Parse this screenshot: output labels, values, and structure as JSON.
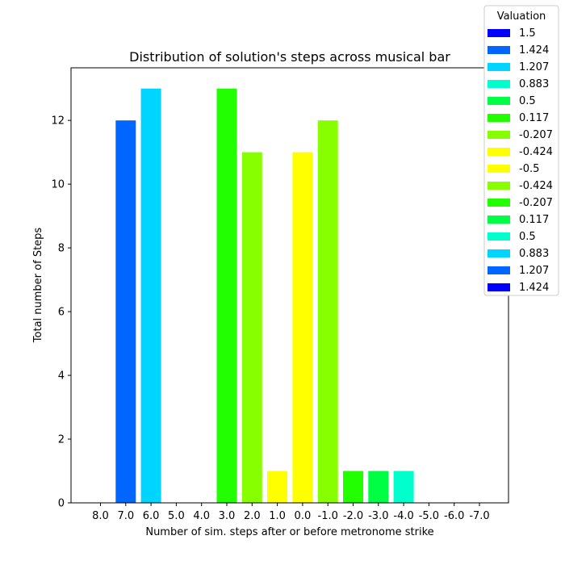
{
  "chart_data": {
    "type": "bar",
    "title": "Distribution of solution's steps across musical bar",
    "xlabel": "Number of sim. steps after or before metronome strike",
    "ylabel": "Total number of Steps",
    "ylim": [
      0,
      13.65
    ],
    "yticks": [
      0,
      2,
      4,
      6,
      8,
      10,
      12
    ],
    "grid": false,
    "categories": [
      "8.0",
      "7.0",
      "6.0",
      "5.0",
      "4.0",
      "3.0",
      "2.0",
      "1.0",
      "0.0",
      "-1.0",
      "-2.0",
      "-3.0",
      "-4.0",
      "-5.0",
      "-6.0",
      "-7.0"
    ],
    "values": [
      0,
      12,
      13,
      0,
      0,
      13,
      11,
      1,
      11,
      12,
      1,
      1,
      1,
      0,
      0,
      0
    ],
    "bar_colors": [
      "#0000ff",
      "#0066ff",
      "#00d5ff",
      "#00ffcc",
      "#00ff44",
      "#22ff00",
      "#88ff00",
      "#ffff00",
      "#ffff00",
      "#88ff00",
      "#22ff00",
      "#00ff44",
      "#00ffcc",
      "#00d5ff",
      "#0066ff",
      "#0000ff"
    ],
    "legend": {
      "title": "Valuation",
      "placement": "top-right",
      "entries": [
        "1.5",
        "1.424",
        "1.207",
        "0.883",
        "0.5",
        "0.117",
        "-0.207",
        "-0.424",
        "-0.5",
        "-0.424",
        "-0.207",
        "0.117",
        "0.5",
        "0.883",
        "1.207",
        "1.424"
      ]
    }
  }
}
